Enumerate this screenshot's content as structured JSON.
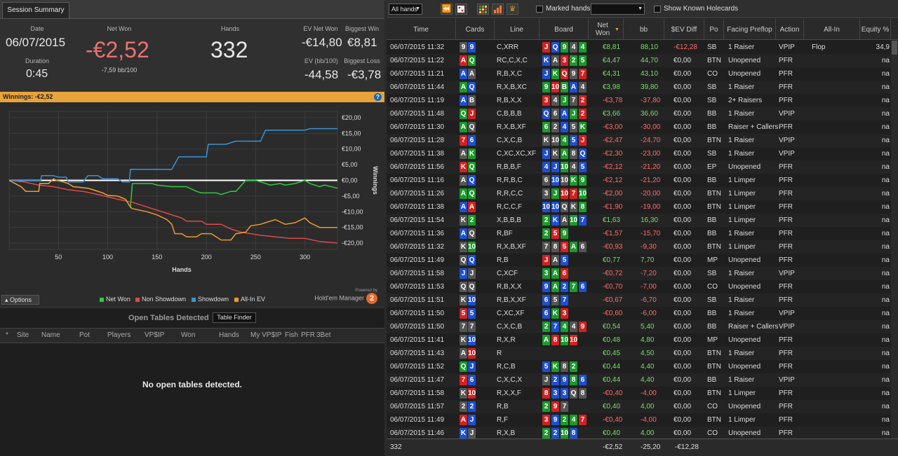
{
  "summary": {
    "tab": "Session Summary",
    "date_label": "Date",
    "date": "06/07/2015",
    "duration_label": "Duration",
    "duration": "0:45",
    "netwon_label": "Net Won",
    "netwon": "-€2,52",
    "bb100": "-7,59 bb/100",
    "hands_label": "Hands",
    "hands": "332",
    "ev_label": "EV Net Won",
    "ev": "-€14,80",
    "evbb_label": "EV (bb/100)",
    "evbb": "-44,58",
    "bw_label": "Biggest Win",
    "bw": "€8,81",
    "bl_label": "Biggest Loss",
    "bl": "-€3,78"
  },
  "winnings_bar": "Winnings: -€2,52",
  "chart_data": {
    "type": "line",
    "ylabel": "Winnings",
    "xlabel": "Hands",
    "xlim": [
      0,
      333
    ],
    "ylim": [
      -22,
      22
    ],
    "xticks": [
      50,
      100,
      150,
      200,
      250,
      300
    ],
    "yticks": [
      "€20,00",
      "€15,00",
      "€10,00",
      "€5,00",
      "€0,00",
      "-€5,00",
      "-€10,00",
      "-€15,00",
      "-€20,00"
    ],
    "yvals": [
      20,
      15,
      10,
      5,
      0,
      -5,
      -10,
      -15,
      -20
    ],
    "series": [
      {
        "name": "Net Won",
        "color": "#2ecc40",
        "points": [
          [
            0,
            0
          ],
          [
            12,
            -2
          ],
          [
            17,
            -3.5
          ],
          [
            30,
            -3.5
          ],
          [
            31,
            -1
          ],
          [
            40,
            -1
          ],
          [
            45,
            0.5
          ],
          [
            48,
            0
          ],
          [
            55,
            -0.5
          ],
          [
            60,
            -1
          ],
          [
            65,
            -2
          ],
          [
            80,
            -2.5
          ],
          [
            85,
            -3
          ],
          [
            95,
            -4
          ],
          [
            100,
            -4.8
          ],
          [
            110,
            -5
          ],
          [
            118,
            -6
          ],
          [
            120,
            -7
          ],
          [
            123,
            -8.5
          ],
          [
            125,
            -1
          ],
          [
            135,
            -1
          ],
          [
            145,
            -1
          ],
          [
            150,
            -1.5
          ],
          [
            165,
            -2
          ],
          [
            180,
            -2
          ],
          [
            190,
            -3.5
          ],
          [
            195,
            -4
          ],
          [
            210,
            -4
          ],
          [
            215,
            -4.5
          ],
          [
            225,
            -3.5
          ],
          [
            230,
            -3.5
          ],
          [
            240,
            0
          ],
          [
            250,
            0
          ],
          [
            255,
            -0.5
          ],
          [
            265,
            -1.5
          ],
          [
            275,
            -1
          ],
          [
            280,
            -1.5
          ],
          [
            290,
            -1
          ],
          [
            300,
            0
          ],
          [
            305,
            -1
          ],
          [
            315,
            -2
          ],
          [
            320,
            -1.5
          ],
          [
            333,
            -2.5
          ]
        ]
      },
      {
        "name": "Non Showdown",
        "color": "#e04848",
        "points": [
          [
            0,
            0
          ],
          [
            15,
            -0.5
          ],
          [
            30,
            -1.5
          ],
          [
            45,
            -2
          ],
          [
            60,
            -3
          ],
          [
            75,
            -3.5
          ],
          [
            90,
            -4.5
          ],
          [
            110,
            -6
          ],
          [
            125,
            -7
          ],
          [
            135,
            -8
          ],
          [
            145,
            -9
          ],
          [
            160,
            -10.5
          ],
          [
            175,
            -12
          ],
          [
            180,
            -13
          ],
          [
            195,
            -13
          ],
          [
            200,
            -14
          ],
          [
            215,
            -14
          ],
          [
            225,
            -15.5
          ],
          [
            235,
            -16.5
          ],
          [
            245,
            -17
          ],
          [
            255,
            -17.5
          ],
          [
            270,
            -18
          ],
          [
            285,
            -18.5
          ],
          [
            300,
            -18.5
          ],
          [
            315,
            -19.5
          ],
          [
            333,
            -20
          ]
        ]
      },
      {
        "name": "Showdown",
        "color": "#3a93d6",
        "points": [
          [
            0,
            0
          ],
          [
            20,
            0
          ],
          [
            32,
            0
          ],
          [
            33,
            1.5
          ],
          [
            45,
            1.5
          ],
          [
            50,
            1
          ],
          [
            58,
            1
          ],
          [
            60,
            -0.5
          ],
          [
            75,
            -0.5
          ],
          [
            80,
            1.5
          ],
          [
            90,
            1.5
          ],
          [
            95,
            0.5
          ],
          [
            110,
            0.5
          ],
          [
            115,
            -0.5
          ],
          [
            122,
            -0.5
          ],
          [
            123,
            3.5
          ],
          [
            145,
            3.5
          ],
          [
            165,
            3.5
          ],
          [
            172,
            7.5
          ],
          [
            200,
            7.5
          ],
          [
            202,
            11.5
          ],
          [
            220,
            11.5
          ],
          [
            230,
            12.5
          ],
          [
            255,
            12.5
          ],
          [
            260,
            16
          ],
          [
            300,
            16
          ],
          [
            305,
            16.5
          ],
          [
            333,
            16.5
          ]
        ]
      },
      {
        "name": "All-In EV",
        "color": "#f0962e",
        "points": [
          [
            0,
            0
          ],
          [
            12,
            -2
          ],
          [
            17,
            -3.5
          ],
          [
            30,
            -3.5
          ],
          [
            31,
            -1
          ],
          [
            40,
            -1
          ],
          [
            45,
            0.5
          ],
          [
            48,
            0
          ],
          [
            55,
            -0.5
          ],
          [
            60,
            -1
          ],
          [
            65,
            -2
          ],
          [
            80,
            -2.5
          ],
          [
            85,
            -3
          ],
          [
            95,
            -4
          ],
          [
            100,
            -4.8
          ],
          [
            110,
            -5
          ],
          [
            118,
            -6
          ],
          [
            123,
            -8.5
          ],
          [
            125,
            -9
          ],
          [
            140,
            -10
          ],
          [
            150,
            -11
          ],
          [
            160,
            -12.5
          ],
          [
            165,
            -14
          ],
          [
            168,
            -17
          ],
          [
            175,
            -17
          ],
          [
            180,
            -18
          ],
          [
            190,
            -18
          ],
          [
            195,
            -17
          ],
          [
            205,
            -17
          ],
          [
            215,
            -19
          ],
          [
            225,
            -19
          ],
          [
            230,
            -17
          ],
          [
            240,
            -16.5
          ],
          [
            245,
            -14.5
          ],
          [
            255,
            -14
          ],
          [
            260,
            -13.5
          ],
          [
            270,
            -12.5
          ],
          [
            280,
            -14
          ],
          [
            290,
            -13.5
          ],
          [
            300,
            -12
          ],
          [
            305,
            -13.5
          ],
          [
            315,
            -15
          ],
          [
            333,
            -15
          ]
        ]
      }
    ]
  },
  "options_label": "Options",
  "legend": [
    {
      "name": "Net Won",
      "color": "#2ecc40"
    },
    {
      "name": "Non Showdown",
      "color": "#e04848"
    },
    {
      "name": "Showdown",
      "color": "#3a93d6"
    },
    {
      "name": "All-In EV",
      "color": "#f0962e"
    }
  ],
  "hm": {
    "powered": "Powered by",
    "name": "Hold'em Manager",
    "num": "2"
  },
  "open": {
    "title": "Open Tables Detected",
    "finder": "Table Finder",
    "cols": [
      "*",
      "Site",
      "Name",
      "Pot",
      "Players",
      "VP$IP",
      "Won",
      "Hands",
      "My VP$IP",
      "Fish",
      "PFR",
      "3Bet"
    ],
    "empty": "No open tables detected."
  },
  "toolbar": {
    "filter": "All hands",
    "marked": "Marked hands",
    "known": "Show Known Holecards"
  },
  "columns": [
    "Time",
    "Cards",
    "Line",
    "Board",
    "Net Won",
    "bb",
    "$EV Diff",
    "Po",
    "Facing Preflop",
    "Action",
    "All-In",
    "Equity %"
  ],
  "suitcolors": {
    "s": "#555555",
    "h": "#d42020",
    "d": "#1c4fd1",
    "c": "#1a9a2a"
  },
  "rows": [
    [
      "06/07/2015 11:32",
      "9s9d",
      "C,XRR",
      "JhQd9c4s4c",
      "€8,81",
      "88,10",
      "-€12,28",
      "SB",
      "1 Raiser",
      "VPIP",
      "Flop",
      "34,9"
    ],
    [
      "06/07/2015 11:22",
      "AhQc",
      "RC,C,X,C",
      "KdAs3h2c5c",
      "€4,47",
      "44,70",
      "€0,00",
      "BTN",
      "Unopened",
      "PFR",
      "",
      "na"
    ],
    [
      "06/07/2015 11:21",
      "AdAs",
      "R,B,X,C",
      "JdKcQh9s7h",
      "€4,31",
      "43,10",
      "€0,00",
      "CO",
      "Unopened",
      "PFR",
      "",
      "na"
    ],
    [
      "06/07/2015 11:44",
      "AcQd",
      "R,X,B,XC",
      "9c10hBcAd4s",
      "€3,98",
      "39,80",
      "€0,00",
      "SB",
      "1 Raiser",
      "PFR",
      "",
      "na"
    ],
    [
      "06/07/2015 11:19",
      "AdBs",
      "R,B,X,X",
      "3h4sJc7s2h",
      "-€3,78",
      "-37,80",
      "€0,00",
      "SB",
      "2+ Raisers",
      "PFR",
      "",
      "na"
    ],
    [
      "06/07/2015 11:48",
      "QcJh",
      "C,B,B,B",
      "Qd6sAdJc2h",
      "€3,66",
      "36,60",
      "€0,00",
      "BB",
      "1 Raiser",
      "VPIP",
      "",
      "na"
    ],
    [
      "06/07/2015 11:30",
      "AcQs",
      "R,X,B,XF",
      "6c2s4d5sKc",
      "-€3,00",
      "-30,00",
      "€0,00",
      "BB",
      "Raiser + Callers",
      "PFR",
      "",
      "na"
    ],
    [
      "06/07/2015 11:28",
      "7h6d",
      "C,X,C,B",
      "K10s4c5dJh",
      "-€2,47",
      "-24,70",
      "€0,00",
      "BTN",
      "1 Raiser",
      "VPIP",
      "",
      "na"
    ],
    [
      "06/07/2015 11:38",
      "AsKc",
      "C,XC,XC,XF",
      "JdKsAc8sQd",
      "-€2,30",
      "-23,00",
      "€0,00",
      "SB",
      "1 Raiser",
      "VPIP",
      "",
      "na"
    ],
    [
      "06/07/2015 11:56",
      "KhQc",
      "R,B,B,F",
      "4dJd10c4s5d",
      "-€2,12",
      "-21,20",
      "€0,00",
      "EP",
      "Unopened",
      "PFR",
      "",
      "na"
    ],
    [
      "06/07/2015 11:16",
      "AsQd",
      "R,R,B,C",
      "6s10d10sKc9c",
      "-€2,12",
      "-21,20",
      "€0,00",
      "BB",
      "1 Limper",
      "PFR",
      "",
      "na"
    ],
    [
      "06/07/2015 11:26",
      "AcQc",
      "R,R,C,C",
      "3sJc10h7h10c",
      "-€2,00",
      "-20,00",
      "€0,00",
      "BTN",
      "1 Limper",
      "PFR",
      "",
      "na"
    ],
    [
      "06/07/2015 11:38",
      "AdAh",
      "R,C,C,F",
      "10d10dQsK8c",
      "-€1,90",
      "-19,00",
      "€0,00",
      "BTN",
      "1 Limper",
      "PFR",
      "",
      "na"
    ],
    [
      "06/07/2015 11:54",
      "K2c",
      "X,B,B,B",
      "2cKdAs10c7d",
      "€1,63",
      "16,30",
      "€0,00",
      "BB",
      "1 Limper",
      "PFR",
      "",
      "na"
    ],
    [
      "06/07/2015 11:36",
      "AdQs",
      "R,BF",
      "2c5h9c",
      "-€1,57",
      "-15,70",
      "€0,00",
      "BB",
      "1 Raiser",
      "PFR",
      "",
      "na"
    ],
    [
      "06/07/2015 11:32",
      "K10c",
      "R,X,B,XF",
      "7s8s5hAc6s",
      "-€0,93",
      "-9,30",
      "€0,00",
      "BTN",
      "1 Limper",
      "PFR",
      "",
      "na"
    ],
    [
      "06/07/2015 11:49",
      "QsQd",
      "R,B",
      "JhAs5d",
      "€0,77",
      "7,70",
      "€0,00",
      "MP",
      "Unopened",
      "PFR",
      "",
      "na"
    ],
    [
      "06/07/2015 11:58",
      "JdJs",
      "C,XCF",
      "3cAc6h",
      "-€0,72",
      "-7,20",
      "€0,00",
      "SB",
      "1 Raiser",
      "VPIP",
      "",
      "na"
    ],
    [
      "06/07/2015 11:53",
      "QsQs",
      "R,B,X,X",
      "9dAc2d7c6d",
      "-€0,70",
      "-7,00",
      "€0,00",
      "CO",
      "Unopened",
      "PFR",
      "",
      "na"
    ],
    [
      "06/07/2015 11:51",
      "K10d",
      "R,B,X,XF",
      "6d5s7d",
      "-€0,67",
      "-6,70",
      "€0,00",
      "SB",
      "1 Raiser",
      "PFR",
      "",
      "na"
    ],
    [
      "06/07/2015 11:50",
      "5h5d",
      "C,XC,XF",
      "6dKc3h",
      "-€0,60",
      "-6,00",
      "€0,00",
      "BB",
      "1 Raiser",
      "VPIP",
      "",
      "na"
    ],
    [
      "06/07/2015 11:50",
      "7s7s",
      "C,X,C,B",
      "2c7d4c4s9h",
      "€0,54",
      "5,40",
      "€0,00",
      "BB",
      "Raiser + Callers",
      "VPIP",
      "",
      "na"
    ],
    [
      "06/07/2015 11:41",
      "K10d",
      "R,X,R",
      "Ac8h10c10h",
      "€0,48",
      "4,80",
      "€0,00",
      "MP",
      "Unopened",
      "PFR",
      "",
      "na"
    ],
    [
      "06/07/2015 11:43",
      "A10h",
      "R",
      "",
      "€0,45",
      "4,50",
      "€0,00",
      "BTN",
      "1 Raiser",
      "PFR",
      "",
      "na"
    ],
    [
      "06/07/2015 11:52",
      "QcJd",
      "R,C,B",
      "5dKc8s2c",
      "€0,44",
      "4,40",
      "€0,00",
      "BTN",
      "Unopened",
      "PFR",
      "",
      "na"
    ],
    [
      "06/07/2015 11:47",
      "7h6d",
      "C,X,C,X",
      "J2d9d8c6d",
      "€0,44",
      "4,40",
      "€0,00",
      "BB",
      "1 Raiser",
      "VPIP",
      "",
      "na"
    ],
    [
      "06/07/2015 11:58",
      "K10h",
      "R,X,X,F",
      "8h3d3dQs8s",
      "-€0,40",
      "-4,00",
      "€0,00",
      "BTN",
      "1 Limper",
      "PFR",
      "",
      "na"
    ],
    [
      "06/07/2015 11:57",
      "2s2d",
      "R,B",
      "2c9h7s",
      "€0,40",
      "4,00",
      "€0,00",
      "CO",
      "Unopened",
      "PFR",
      "",
      "na"
    ],
    [
      "06/07/2015 11:49",
      "AhJd",
      "R,F",
      "3h9d2c4c7h",
      "-€0,40",
      "-4,00",
      "€0,00",
      "BTN",
      "1 Limper",
      "PFR",
      "",
      "na"
    ],
    [
      "06/07/2015 11:46",
      "KdJs",
      "R,X,B",
      "2c2d10c8d",
      "€0,40",
      "4,00",
      "€0,00",
      "CO",
      "Unopened",
      "PFR",
      "",
      "na"
    ]
  ],
  "footer": {
    "count": "332",
    "net": "-€2,52",
    "bb": "-25,20",
    "ev": "-€12,28"
  }
}
